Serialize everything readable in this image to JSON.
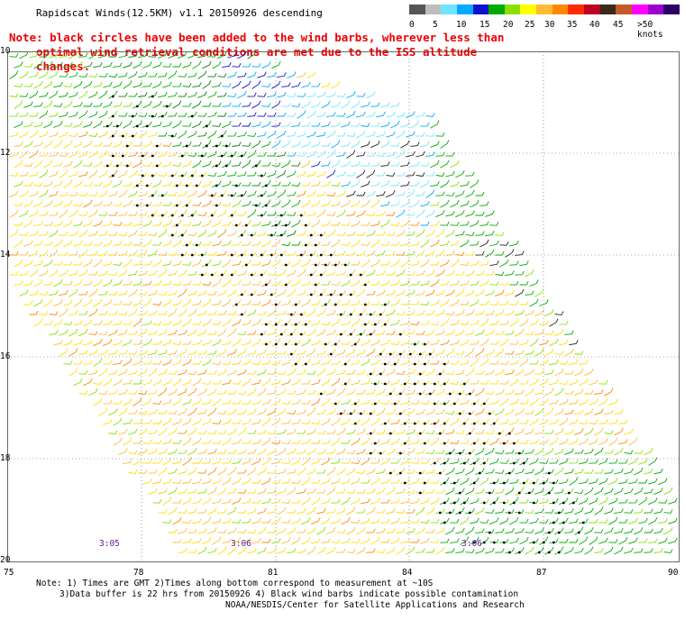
{
  "title": "Rapidscat Winds(12.5KM) v1.1 20150926 descending",
  "note": {
    "line1": "Note: black circles have been added to the wind barbs, wherever less than",
    "line2": "optimal wind retrieval conditions are met due to the ISS altitude changes."
  },
  "scale": {
    "labels": [
      "0",
      "5",
      "10",
      "15",
      "20",
      "25",
      "30",
      "35",
      "40",
      "45",
      ">50 knots"
    ],
    "colors": [
      "#555555",
      "#bdbdbd",
      "#6fe5ff",
      "#00aaff",
      "#1010d0",
      "#00aa00",
      "#8be000",
      "#ffff00",
      "#ffbb33",
      "#ff8800",
      "#ff2a00",
      "#bb0022",
      "#3a2a1a",
      "#c35a2a",
      "#ff00ff",
      "#9a00cc",
      "#2a0066"
    ]
  },
  "lat_labels": [
    "10",
    "12",
    "14",
    "16",
    "18",
    "20"
  ],
  "lon_labels": [
    "75",
    "78",
    "81",
    "84",
    "87",
    "90"
  ],
  "time_labels": [
    "3:05",
    "3:06",
    "3:06"
  ],
  "footer": {
    "line1": "Note: 1) Times are GMT 2)Times along bottom correspond to measurement at ~10S",
    "line2": "3)Data buffer is 22 hrs from 20150926 4) Black wind barbs indicate possible contamination",
    "line3": "NOAA/NESDIS/Center for Satellite Applications and Research"
  }
}
